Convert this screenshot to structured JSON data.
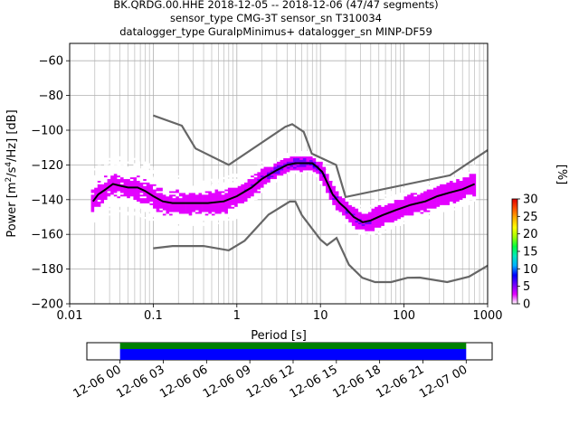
{
  "chart_data": {
    "type": "heatmap",
    "title_lines": [
      "BK.QRDG.00.HHE   2018-12-05 -- 2018-12-06  (47/47 segments)",
      "sensor_type CMG-3T sensor_sn T310034",
      "datalogger_type GuralpMinimus+ datalogger_sn MINP-DF59"
    ],
    "xlabel": "Period [s]",
    "ylabel_parts": [
      "Power [m",
      "2",
      "/s",
      "4",
      "/Hz] [dB]"
    ],
    "xscale": "log",
    "xlim": [
      0.01,
      1000
    ],
    "ylim": [
      -200,
      -50
    ],
    "xticks": [
      {
        "value": 0.01,
        "label": "0.01"
      },
      {
        "value": 0.1,
        "label": "0.1"
      },
      {
        "value": 1,
        "label": "1"
      },
      {
        "value": 10,
        "label": "10"
      },
      {
        "value": 100,
        "label": "100"
      },
      {
        "value": 1000,
        "label": "1000"
      }
    ],
    "yticks": [
      -60,
      -80,
      -100,
      -120,
      -140,
      -160,
      -180,
      -200
    ],
    "grid": true,
    "colorbar": {
      "label": "[%]",
      "ticks": [
        0,
        5,
        10,
        15,
        20,
        25,
        30
      ],
      "range": [
        0,
        30
      ],
      "colors": [
        "#ffffff",
        "#e300ff",
        "#7000ff",
        "#0000ff",
        "#00b0ff",
        "#00e8c0",
        "#00ff40",
        "#a0ff00",
        "#ffff00",
        "#ffb000",
        "#ff5000",
        "#e00000"
      ]
    },
    "mean_curve": [
      [
        0.019,
        -141
      ],
      [
        0.022,
        -137
      ],
      [
        0.027,
        -134
      ],
      [
        0.033,
        -131
      ],
      [
        0.04,
        -132
      ],
      [
        0.05,
        -133
      ],
      [
        0.065,
        -133
      ],
      [
        0.08,
        -135
      ],
      [
        0.1,
        -138
      ],
      [
        0.13,
        -141
      ],
      [
        0.17,
        -142
      ],
      [
        0.22,
        -142
      ],
      [
        0.3,
        -142
      ],
      [
        0.45,
        -142
      ],
      [
        0.7,
        -141
      ],
      [
        1.0,
        -138
      ],
      [
        1.5,
        -133
      ],
      [
        2.0,
        -128
      ],
      [
        3.0,
        -123
      ],
      [
        4.0,
        -120
      ],
      [
        5.0,
        -119
      ],
      [
        6.5,
        -119
      ],
      [
        8.0,
        -119
      ],
      [
        9.0,
        -121
      ],
      [
        10.5,
        -124
      ],
      [
        12.0,
        -130
      ],
      [
        14.0,
        -137
      ],
      [
        17.0,
        -142
      ],
      [
        20.0,
        -145
      ],
      [
        25.0,
        -150
      ],
      [
        32.0,
        -153
      ],
      [
        40.0,
        -152
      ],
      [
        55.0,
        -149
      ],
      [
        80.0,
        -146
      ],
      [
        120.0,
        -143
      ],
      [
        180.0,
        -141
      ],
      [
        250.0,
        -138
      ],
      [
        350.0,
        -136
      ],
      [
        500.0,
        -134
      ],
      [
        700.0,
        -131
      ]
    ],
    "nhnm_curve": [
      [
        0.1,
        -168
      ],
      [
        0.17,
        -166.7
      ],
      [
        0.4,
        -166.7
      ],
      [
        0.8,
        -169.2
      ],
      [
        1.24,
        -163.7
      ],
      [
        2.4,
        -148.6
      ],
      [
        4.3,
        -141.1
      ],
      [
        5.0,
        -141.1
      ],
      [
        6.0,
        -149
      ],
      [
        10.0,
        -163
      ],
      [
        12.0,
        -166.2
      ],
      [
        15.6,
        -162.1
      ],
      [
        21.9,
        -177.5
      ],
      [
        31.6,
        -185
      ],
      [
        45.0,
        -187.5
      ],
      [
        70.0,
        -187.5
      ],
      [
        110.0,
        -185
      ],
      [
        154.0,
        -184.9
      ],
      [
        328.0,
        -187.5
      ],
      [
        600.0,
        -184.4
      ],
      [
        1000.0,
        -178
      ]
    ],
    "nlnm_curve": [
      [
        0.1,
        -91.5
      ],
      [
        0.22,
        -97.4
      ],
      [
        0.32,
        -110.5
      ],
      [
        0.8,
        -120
      ],
      [
        3.8,
        -98
      ],
      [
        4.6,
        -96.5
      ],
      [
        6.3,
        -101
      ],
      [
        7.9,
        -113.5
      ],
      [
        15.4,
        -120
      ],
      [
        20.0,
        -138.5
      ],
      [
        354.8,
        -126
      ],
      [
        1000.0,
        -111.5
      ]
    ],
    "timeline": {
      "tick_labels": [
        "12-06 00",
        "12-06 03",
        "12-06 06",
        "12-06 09",
        "12-06 12",
        "12-06 15",
        "12-06 18",
        "12-06 21",
        "12-07 00"
      ],
      "range_hours": [
        -2.3,
        25.8
      ],
      "data_span_hours": [
        0,
        24
      ],
      "colors": {
        "gaps": "#008000",
        "data": "#0000ff"
      }
    }
  }
}
